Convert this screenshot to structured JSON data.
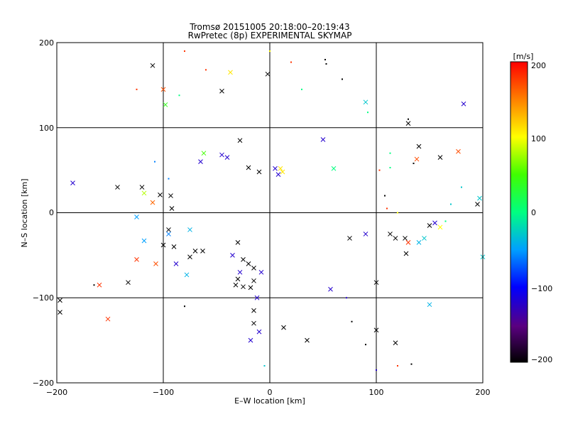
{
  "chart_data": {
    "type": "scatter",
    "title": "Tromsø 20151005 20:18:00–20:19:43",
    "subtitle": "RwPretec (8p) EXPERIMENTAL SKYMAP",
    "xlabel": "E–W location [km]",
    "ylabel": "N–S location [km]",
    "xlim": [
      -200,
      200
    ],
    "ylim": [
      -200,
      200
    ],
    "xticks": [
      "−200",
      "−100",
      "0",
      "100",
      "200"
    ],
    "yticks": [
      "200",
      "100",
      "0",
      "−100",
      "−200"
    ],
    "grid": true,
    "colorbar": {
      "title": "[m/s]",
      "range": [
        -200,
        200
      ],
      "ticks": [
        "200",
        "100",
        "0",
        "−100",
        "−200"
      ]
    },
    "series": [
      {
        "marker": "x",
        "points": [
          {
            "x": -110,
            "y": 173,
            "v": -200
          },
          {
            "x": -100,
            "y": 145,
            "v": 170
          },
          {
            "x": -98,
            "y": 127,
            "v": 40
          },
          {
            "x": -45,
            "y": 143,
            "v": -200
          },
          {
            "x": -37,
            "y": 165,
            "v": 110
          },
          {
            "x": -2,
            "y": 163,
            "v": -200
          },
          {
            "x": -185,
            "y": 35,
            "v": -120
          },
          {
            "x": -143,
            "y": 30,
            "v": -200
          },
          {
            "x": -120,
            "y": 30,
            "v": -200
          },
          {
            "x": -118,
            "y": 23,
            "v": 80
          },
          {
            "x": -110,
            "y": 12,
            "v": 160
          },
          {
            "x": -103,
            "y": 21,
            "v": -200
          },
          {
            "x": -93,
            "y": 20,
            "v": -200
          },
          {
            "x": -92,
            "y": 5,
            "v": -200
          },
          {
            "x": -125,
            "y": -5,
            "v": -50
          },
          {
            "x": -118,
            "y": -33,
            "v": -50
          },
          {
            "x": -100,
            "y": -38,
            "v": -200
          },
          {
            "x": -90,
            "y": -40,
            "v": -200
          },
          {
            "x": -125,
            "y": -55,
            "v": 180
          },
          {
            "x": -107,
            "y": -60,
            "v": 170
          },
          {
            "x": -88,
            "y": -60,
            "v": -120
          },
          {
            "x": -75,
            "y": -52,
            "v": -200
          },
          {
            "x": -70,
            "y": -45,
            "v": -200
          },
          {
            "x": -63,
            "y": -45,
            "v": -200
          },
          {
            "x": -75,
            "y": -20,
            "v": -40
          },
          {
            "x": -95,
            "y": -20,
            "v": -200
          },
          {
            "x": -133,
            "y": -82,
            "v": -200
          },
          {
            "x": -160,
            "y": -85,
            "v": 180
          },
          {
            "x": -197,
            "y": -103,
            "v": -200
          },
          {
            "x": -197,
            "y": -117,
            "v": -200
          },
          {
            "x": -152,
            "y": -125,
            "v": 180
          },
          {
            "x": -95,
            "y": -25,
            "v": -60
          },
          {
            "x": -78,
            "y": -73,
            "v": -40
          },
          {
            "x": -65,
            "y": 60,
            "v": -120
          },
          {
            "x": -62,
            "y": 70,
            "v": 50
          },
          {
            "x": -45,
            "y": 68,
            "v": -120
          },
          {
            "x": -40,
            "y": 65,
            "v": -120
          },
          {
            "x": -28,
            "y": 85,
            "v": -200
          },
          {
            "x": -20,
            "y": 53,
            "v": -200
          },
          {
            "x": -10,
            "y": 48,
            "v": -200
          },
          {
            "x": 5,
            "y": 52,
            "v": -120
          },
          {
            "x": 8,
            "y": 45,
            "v": -120
          },
          {
            "x": -30,
            "y": -35,
            "v": -200
          },
          {
            "x": -25,
            "y": -55,
            "v": -200
          },
          {
            "x": -20,
            "y": -60,
            "v": -200
          },
          {
            "x": -15,
            "y": -65,
            "v": -200
          },
          {
            "x": -28,
            "y": -70,
            "v": -120
          },
          {
            "x": -30,
            "y": -78,
            "v": -200
          },
          {
            "x": -32,
            "y": -85,
            "v": -200
          },
          {
            "x": -25,
            "y": -87,
            "v": -200
          },
          {
            "x": -18,
            "y": -88,
            "v": -200
          },
          {
            "x": -15,
            "y": -80,
            "v": -200
          },
          {
            "x": -8,
            "y": -70,
            "v": -120
          },
          {
            "x": -35,
            "y": -50,
            "v": -120
          },
          {
            "x": -15,
            "y": -115,
            "v": -200
          },
          {
            "x": -15,
            "y": -130,
            "v": -200
          },
          {
            "x": -10,
            "y": -140,
            "v": -120
          },
          {
            "x": -12,
            "y": -100,
            "v": -120
          },
          {
            "x": -18,
            "y": -150,
            "v": -120
          },
          {
            "x": 13,
            "y": -135,
            "v": -200
          },
          {
            "x": 35,
            "y": -150,
            "v": -200
          },
          {
            "x": 57,
            "y": -90,
            "v": -120
          },
          {
            "x": 50,
            "y": 86,
            "v": -120
          },
          {
            "x": 60,
            "y": 52,
            "v": 0
          },
          {
            "x": 75,
            "y": -30,
            "v": -200
          },
          {
            "x": 90,
            "y": -25,
            "v": -120
          },
          {
            "x": 100,
            "y": -82,
            "v": -200
          },
          {
            "x": 100,
            "y": -138,
            "v": -200
          },
          {
            "x": 118,
            "y": -153,
            "v": -200
          },
          {
            "x": 113,
            "y": -25,
            "v": -200
          },
          {
            "x": 118,
            "y": -30,
            "v": -200
          },
          {
            "x": 127,
            "y": -30,
            "v": -200
          },
          {
            "x": 130,
            "y": -35,
            "v": 180
          },
          {
            "x": 128,
            "y": -48,
            "v": -200
          },
          {
            "x": 140,
            "y": -35,
            "v": -40
          },
          {
            "x": 145,
            "y": -30,
            "v": -30
          },
          {
            "x": 150,
            "y": -15,
            "v": -200
          },
          {
            "x": 155,
            "y": -12,
            "v": -120
          },
          {
            "x": 160,
            "y": -17,
            "v": 100
          },
          {
            "x": 150,
            "y": -108,
            "v": -40
          },
          {
            "x": 130,
            "y": 105,
            "v": -200
          },
          {
            "x": 140,
            "y": 78,
            "v": -200
          },
          {
            "x": 138,
            "y": 63,
            "v": 170
          },
          {
            "x": 160,
            "y": 65,
            "v": -200
          },
          {
            "x": 177,
            "y": 72,
            "v": 170
          },
          {
            "x": 182,
            "y": 128,
            "v": -120
          },
          {
            "x": 195,
            "y": 10,
            "v": -200
          },
          {
            "x": 197,
            "y": 17,
            "v": -30
          },
          {
            "x": 200,
            "y": -52,
            "v": -30
          },
          {
            "x": 90,
            "y": 130,
            "v": -30
          },
          {
            "x": 10,
            "y": 52,
            "v": 110
          },
          {
            "x": 12,
            "y": 48,
            "v": 110
          }
        ]
      },
      {
        "marker": "dot",
        "points": [
          {
            "x": -80,
            "y": 190,
            "v": 180
          },
          {
            "x": -60,
            "y": 168,
            "v": 180
          },
          {
            "x": 0,
            "y": 190,
            "v": 100
          },
          {
            "x": 20,
            "y": 177,
            "v": 180
          },
          {
            "x": 52,
            "y": 180,
            "v": -200
          },
          {
            "x": 53,
            "y": 175,
            "v": -200
          },
          {
            "x": 68,
            "y": 157,
            "v": -200
          },
          {
            "x": -85,
            "y": 138,
            "v": 0
          },
          {
            "x": -125,
            "y": 145,
            "v": 180
          },
          {
            "x": 30,
            "y": 145,
            "v": 0
          },
          {
            "x": 92,
            "y": 118,
            "v": 0
          },
          {
            "x": 130,
            "y": 110,
            "v": -200
          },
          {
            "x": 113,
            "y": 70,
            "v": 0
          },
          {
            "x": 103,
            "y": 50,
            "v": 180
          },
          {
            "x": 113,
            "y": 53,
            "v": 0
          },
          {
            "x": 135,
            "y": 58,
            "v": -200
          },
          {
            "x": 108,
            "y": 20,
            "v": -200
          },
          {
            "x": 110,
            "y": 5,
            "v": 180
          },
          {
            "x": 120,
            "y": 0,
            "v": 100
          },
          {
            "x": -108,
            "y": 60,
            "v": -60
          },
          {
            "x": -95,
            "y": 40,
            "v": -60
          },
          {
            "x": -165,
            "y": -85,
            "v": -200
          },
          {
            "x": -80,
            "y": -110,
            "v": -200
          },
          {
            "x": 72,
            "y": -100,
            "v": -120
          },
          {
            "x": 77,
            "y": -128,
            "v": -200
          },
          {
            "x": 90,
            "y": -155,
            "v": -200
          },
          {
            "x": 100,
            "y": -185,
            "v": -120
          },
          {
            "x": 120,
            "y": -180,
            "v": 180
          },
          {
            "x": 133,
            "y": -178,
            "v": -200
          },
          {
            "x": -5,
            "y": -180,
            "v": -30
          },
          {
            "x": 180,
            "y": 30,
            "v": -30
          },
          {
            "x": 165,
            "y": -10,
            "v": 0
          },
          {
            "x": 170,
            "y": 10,
            "v": -30
          }
        ]
      }
    ]
  }
}
